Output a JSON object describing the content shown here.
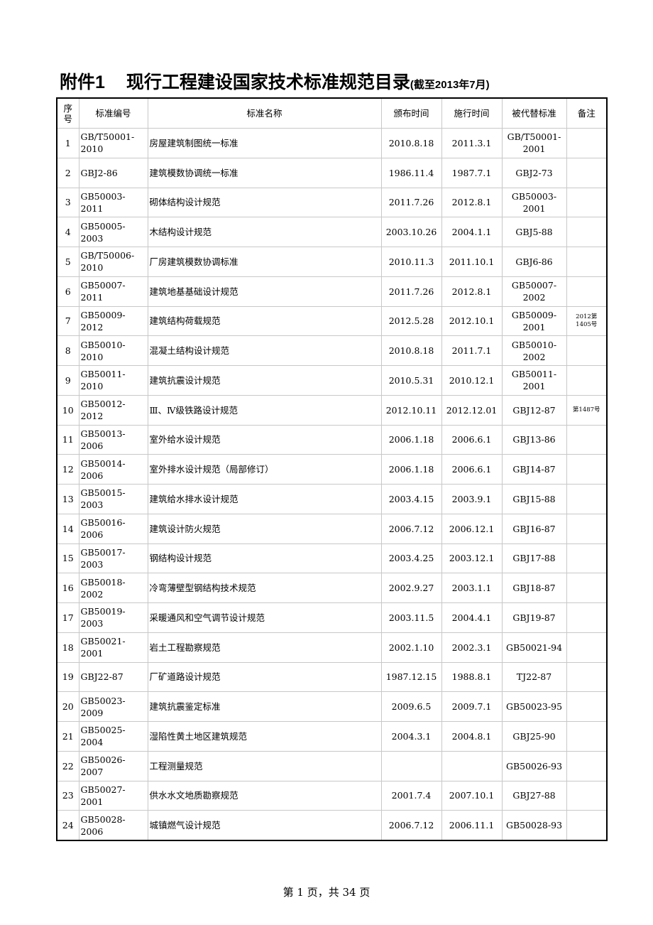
{
  "title": {
    "prefix": "附件1",
    "main": "现行工程建设国家技术标准规范目录",
    "suffix": "(截至2013年7月)"
  },
  "columns": [
    "序号",
    "标准编号",
    "标准名称",
    "颁布时间",
    "施行时间",
    "被代替标准",
    "备注"
  ],
  "rows": [
    [
      "1",
      "GB/T50001-2010",
      "房屋建筑制图统一标准",
      "2010.8.18",
      "2011.3.1",
      "GB/T50001-2001",
      ""
    ],
    [
      "2",
      "GBJ2-86",
      "建筑模数协调统一标准",
      "1986.11.4",
      "1987.7.1",
      "GBJ2-73",
      ""
    ],
    [
      "3",
      "GB50003-2011",
      "砌体结构设计规范",
      "2011.7.26",
      "2012.8.1",
      "GB50003-2001",
      ""
    ],
    [
      "4",
      "GB50005-2003",
      "木结构设计规范",
      "2003.10.26",
      "2004.1.1",
      "GBJ5-88",
      ""
    ],
    [
      "5",
      "GB/T50006-2010",
      "厂房建筑模数协调标准",
      "2010.11.3",
      "2011.10.1",
      "GBJ6-86",
      ""
    ],
    [
      "6",
      "GB50007-2011",
      "建筑地基基础设计规范",
      "2011.7.26",
      "2012.8.1",
      "GB50007-2002",
      ""
    ],
    [
      "7",
      "GB50009-2012",
      "建筑结构荷载规范",
      "2012.5.28",
      "2012.10.1",
      "GB50009-2001",
      "2012第1405号"
    ],
    [
      "8",
      "GB50010-2010",
      "混凝土结构设计规范",
      "2010.8.18",
      "2011.7.1",
      "GB50010-2002",
      ""
    ],
    [
      "9",
      "GB50011-2010",
      "建筑抗震设计规范",
      "2010.5.31",
      "2010.12.1",
      "GB50011-2001",
      ""
    ],
    [
      "10",
      "GB50012-2012",
      "Ⅲ、Ⅳ级铁路设计规范",
      "2012.10.11",
      "2012.12.01",
      "GBJ12-87",
      "第1487号"
    ],
    [
      "11",
      "GB50013-2006",
      "室外给水设计规范",
      "2006.1.18",
      "2006.6.1",
      "GBJ13-86",
      ""
    ],
    [
      "12",
      "GB50014-2006",
      "室外排水设计规范（局部修订）",
      "2006.1.18",
      "2006.6.1",
      "GBJ14-87",
      ""
    ],
    [
      "13",
      "GB50015-2003",
      "建筑给水排水设计规范",
      "2003.4.15",
      "2003.9.1",
      "GBJ15-88",
      ""
    ],
    [
      "14",
      "GB50016-2006",
      "建筑设计防火规范",
      "2006.7.12",
      "2006.12.1",
      "GBJ16-87",
      ""
    ],
    [
      "15",
      "GB50017-2003",
      "钢结构设计规范",
      "2003.4.25",
      "2003.12.1",
      "GBJ17-88",
      ""
    ],
    [
      "16",
      "GB50018-2002",
      "冷弯薄壁型钢结构技术规范",
      "2002.9.27",
      "2003.1.1",
      "GBJ18-87",
      ""
    ],
    [
      "17",
      "GB50019-2003",
      "采暖通风和空气调节设计规范",
      "2003.11.5",
      "2004.4.1",
      "GBJ19-87",
      ""
    ],
    [
      "18",
      "GB50021-2001",
      "岩土工程勘察规范",
      "2002.1.10",
      "2002.3.1",
      "GB50021-94",
      ""
    ],
    [
      "19",
      "GBJ22-87",
      "厂矿道路设计规范",
      "1987.12.15",
      "1988.8.1",
      "TJ22-87",
      ""
    ],
    [
      "20",
      "GB50023-2009",
      "建筑抗震鉴定标准",
      "2009.6.5",
      "2009.7.1",
      "GB50023-95",
      ""
    ],
    [
      "21",
      "GB50025-2004",
      "湿陷性黄土地区建筑规范",
      "2004.3.1",
      "2004.8.1",
      "GBJ25-90",
      ""
    ],
    [
      "22",
      "GB50026-2007",
      "工程测量规范",
      "",
      "",
      "GB50026-93",
      ""
    ],
    [
      "23",
      "GB50027-2001",
      "供水水文地质勘察规范",
      "2001.7.4",
      "2007.10.1",
      "GBJ27-88",
      ""
    ],
    [
      "24",
      "GB50028-2006",
      "城镇燃气设计规范",
      "2006.7.12",
      "2006.11.1",
      "GB50028-93",
      ""
    ]
  ],
  "footer": "第 1 页，共 34 页"
}
